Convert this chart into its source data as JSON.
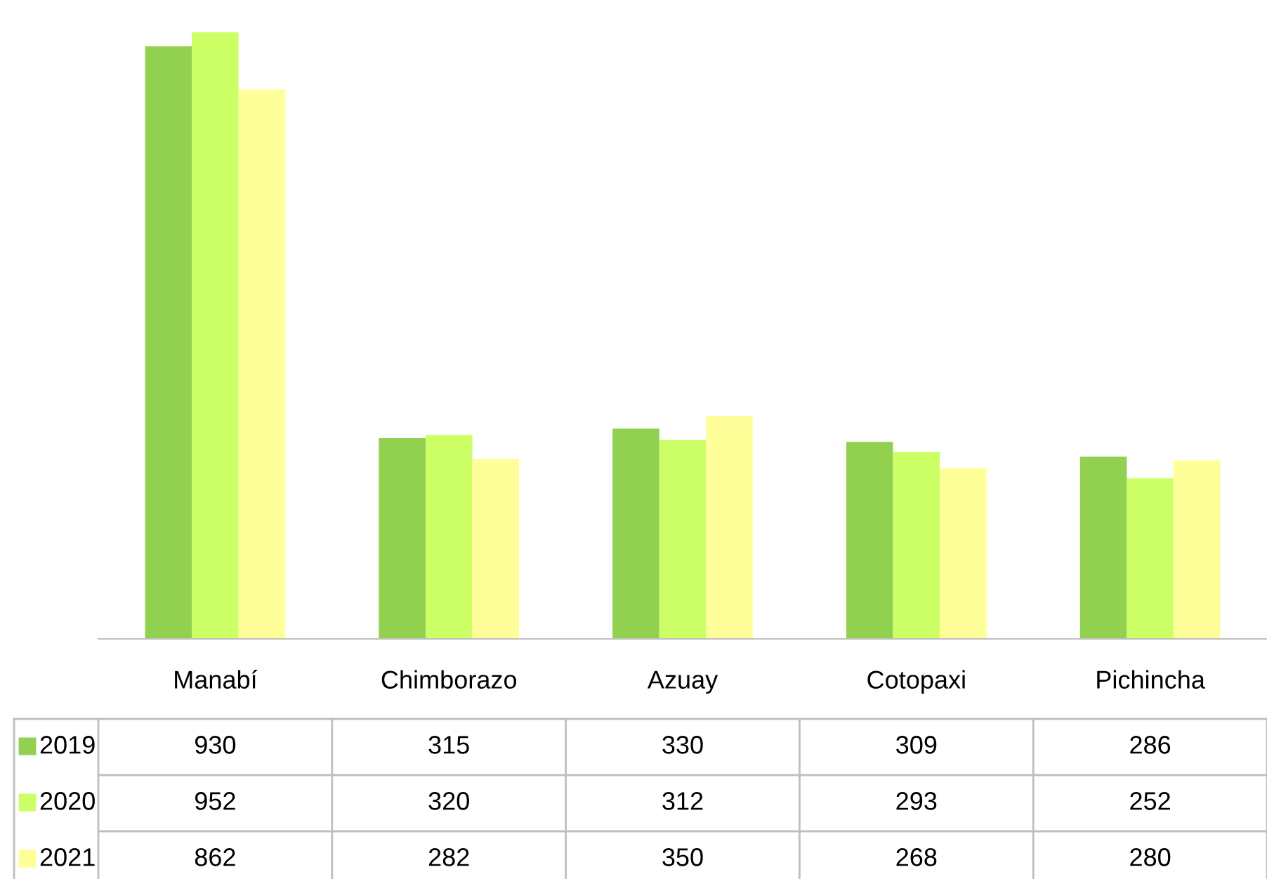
{
  "chart_data": {
    "type": "bar",
    "categories": [
      "Manabí",
      "Chimborazo",
      "Azuay",
      "Cotopaxi",
      "Pichincha"
    ],
    "series": [
      {
        "name": "2019",
        "color": "#92d050",
        "values": [
          930,
          315,
          330,
          309,
          286
        ]
      },
      {
        "name": "2020",
        "color": "#ccff66",
        "values": [
          952,
          320,
          312,
          293,
          252
        ]
      },
      {
        "name": "2021",
        "color": "#ffff99",
        "values": [
          862,
          282,
          350,
          268,
          280
        ]
      }
    ],
    "data_labels": true,
    "legend": "bottom",
    "grid": false
  }
}
